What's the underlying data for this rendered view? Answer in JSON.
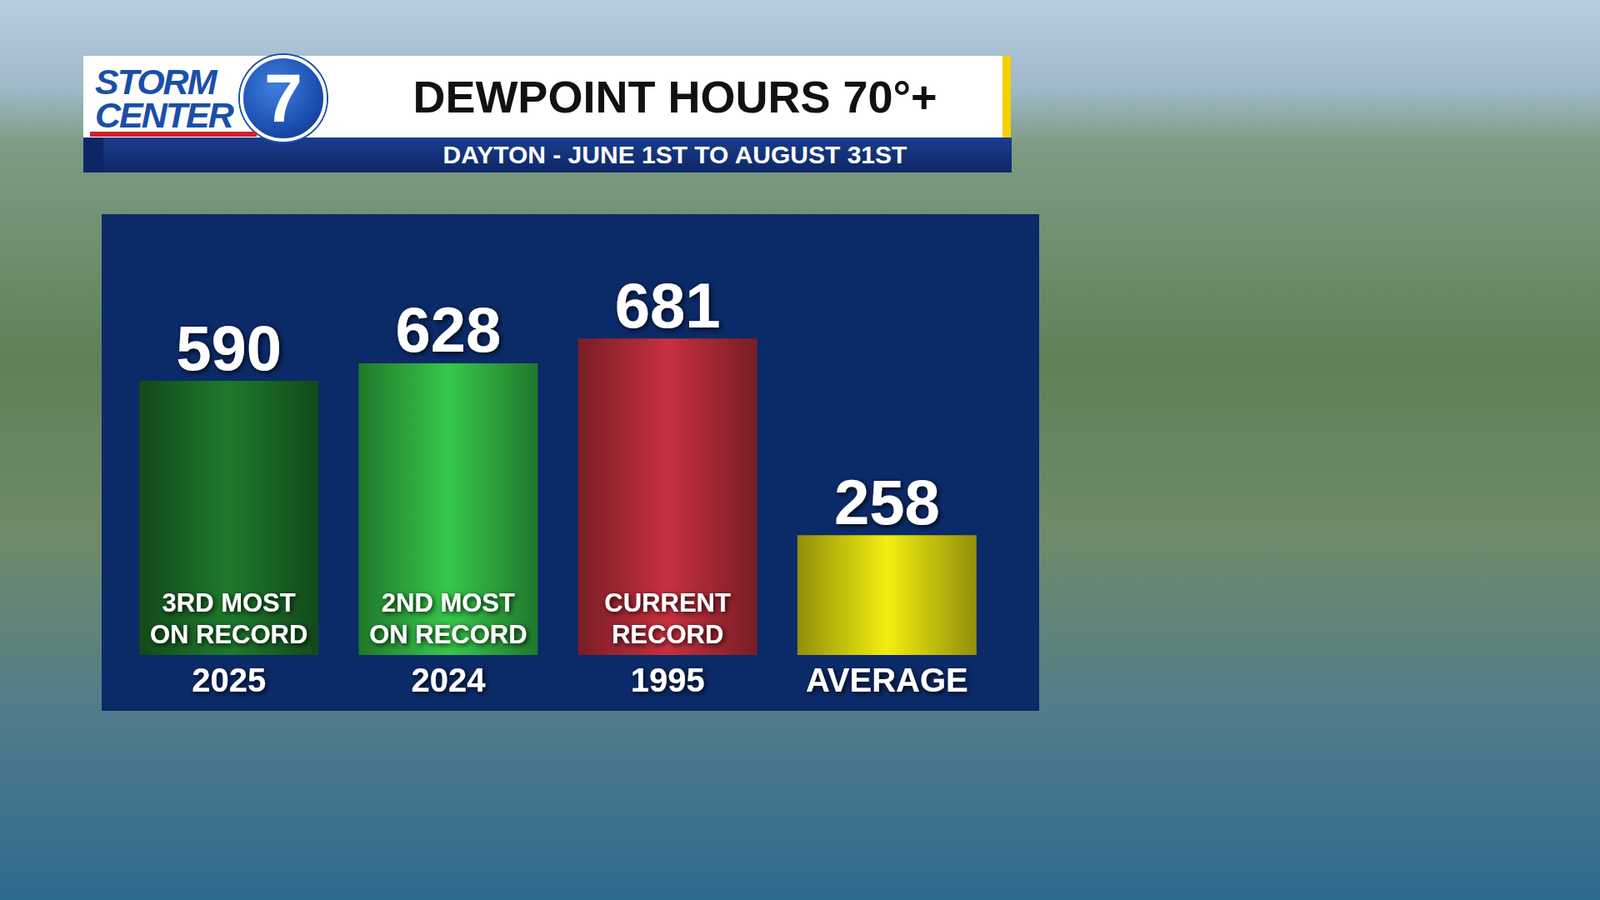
{
  "logo": {
    "text": "STORM CENTER",
    "number": "7"
  },
  "chart_data": {
    "type": "bar",
    "title": "DEWPOINT HOURS 70°+",
    "subtitle": "DAYTON - JUNE 1ST TO AUGUST 31ST",
    "categories": [
      "2025",
      "2024",
      "1995",
      "AVERAGE"
    ],
    "values": [
      590,
      628,
      681,
      258
    ],
    "annotations": [
      "3RD MOST\nON RECORD",
      "2ND MOST\nON RECORD",
      "CURRENT\nRECORD",
      null
    ],
    "colors": [
      "#1e7a2c",
      "#36c84a",
      "#c8303f",
      "#f2ee10"
    ],
    "ylim": [
      0,
      800
    ],
    "yticks": [
      0,
      800
    ],
    "grid": false,
    "data_labels": true,
    "tick_labels": "x"
  }
}
